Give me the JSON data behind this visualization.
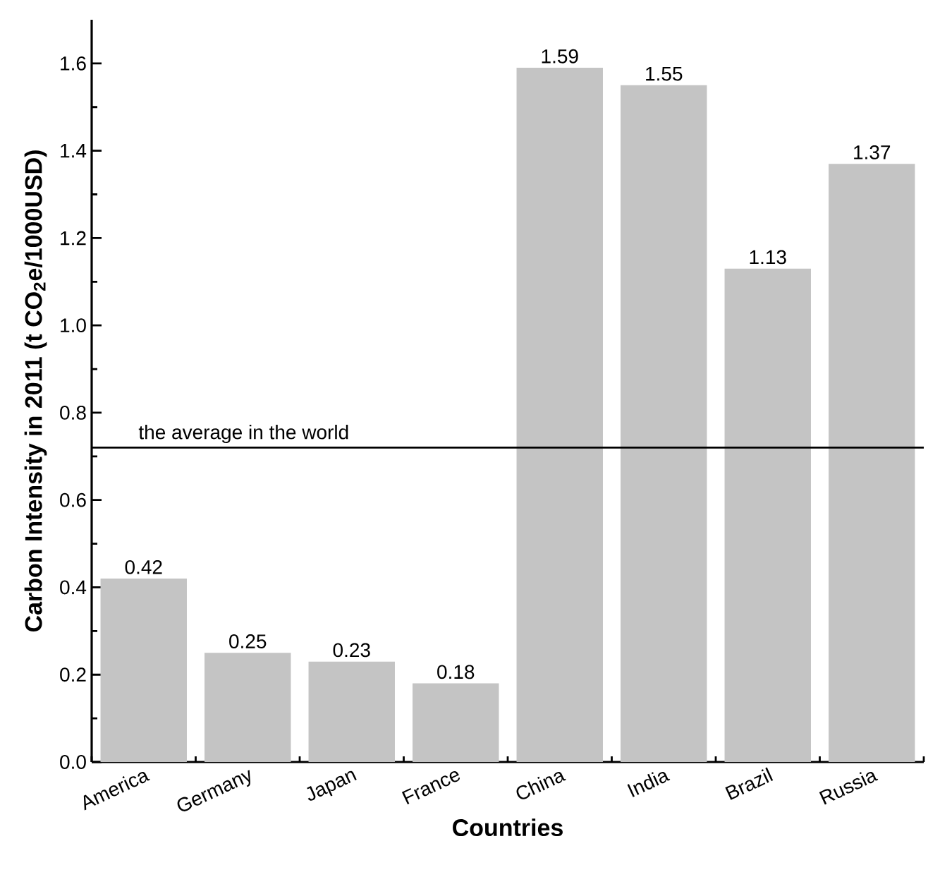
{
  "chart_data": {
    "type": "bar",
    "xlabel": "Countries",
    "ylabel": "Carbon Intensity in 2011 (t CO$_{2}$e/1000USD)",
    "categories": [
      "America",
      "Germany",
      "Japan",
      "France",
      "China",
      "India",
      "Brazil",
      "Russia"
    ],
    "values": [
      0.42,
      0.25,
      0.23,
      0.18,
      1.59,
      1.55,
      1.13,
      1.37
    ],
    "color": "#c4c4c4",
    "ylim": [
      0,
      1.7
    ],
    "yticks": [
      {
        "value": 0,
        "label": "0.0"
      },
      0.2,
      0.4,
      0.6,
      0.8,
      {
        "value": 1,
        "label": "1.0"
      },
      1.2,
      1.4,
      1.6
    ],
    "data_labels": true,
    "ref_lines": [
      {
        "axis": "y",
        "value": 0.72,
        "label": "the average in the world",
        "color": "#000000"
      }
    ]
  }
}
